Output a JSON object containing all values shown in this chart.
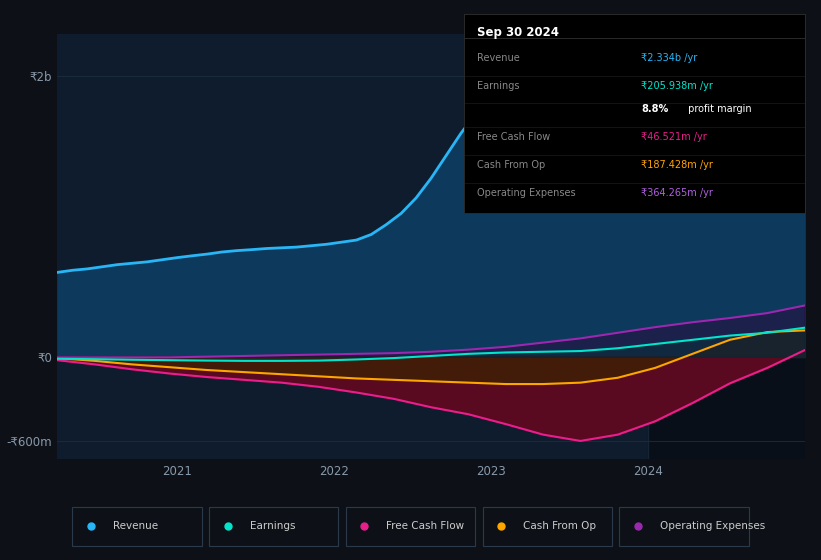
{
  "bg_color": "#0d1117",
  "plot_bg_color": "#0e1c2e",
  "grid_color": "#1e2d3d",
  "title_box": {
    "date": "Sep 30 2024",
    "rows": [
      {
        "label": "Revenue",
        "value": "₹2.334b /yr",
        "value_color": "#00bfff"
      },
      {
        "label": "Earnings",
        "value": "₹205.938m /yr",
        "value_color": "#00e5cc"
      },
      {
        "label": "",
        "value2a": "8.8%",
        "value2b": " profit margin",
        "value_color": "#ffffff"
      },
      {
        "label": "Free Cash Flow",
        "value": "₹46.521m /yr",
        "value_color": "#ff69b4"
      },
      {
        "label": "Cash From Op",
        "value": "₹187.428m /yr",
        "value_color": "#ffa500"
      },
      {
        "label": "Operating Expenses",
        "value": "₹364.265m /yr",
        "value_color": "#b060e0"
      }
    ]
  },
  "ytick_labels": [
    "₹2b",
    "₹0",
    "-₹600m"
  ],
  "ytick_values": [
    2000,
    0,
    -600
  ],
  "xtick_labels": [
    "2021",
    "2022",
    "2023",
    "2024"
  ],
  "ylim": [
    -730,
    2300
  ],
  "series": {
    "revenue": {
      "color": "#29b6f6",
      "fill_color": "#0d3a5c",
      "x": [
        0,
        2,
        4,
        6,
        8,
        10,
        12,
        14,
        16,
        18,
        20,
        22,
        24,
        26,
        28,
        30,
        32,
        34,
        36,
        38,
        40,
        42,
        44,
        46,
        48,
        50,
        52,
        54,
        56,
        58,
        60,
        62,
        64,
        66,
        68,
        70,
        72,
        74,
        76,
        78,
        80,
        82,
        84,
        86,
        88,
        90,
        92,
        94,
        96,
        98,
        100
      ],
      "y": [
        600,
        615,
        625,
        640,
        655,
        665,
        675,
        690,
        705,
        718,
        730,
        745,
        755,
        762,
        770,
        775,
        780,
        790,
        800,
        815,
        830,
        870,
        940,
        1020,
        1130,
        1270,
        1430,
        1590,
        1730,
        1820,
        1870,
        1890,
        1895,
        1900,
        1885,
        1890,
        1895,
        1900,
        1910,
        1920,
        1935,
        1950,
        1960,
        1975,
        1990,
        2050,
        2120,
        2200,
        2270,
        2310,
        2334
      ]
    },
    "earnings": {
      "color": "#00e5cc",
      "fill_color": "#003333",
      "x": [
        0,
        5,
        10,
        15,
        20,
        25,
        30,
        35,
        40,
        45,
        50,
        55,
        60,
        65,
        70,
        75,
        80,
        85,
        90,
        95,
        100
      ],
      "y": [
        -15,
        -18,
        -22,
        -25,
        -28,
        -30,
        -30,
        -28,
        -20,
        -10,
        5,
        20,
        30,
        35,
        40,
        60,
        90,
        120,
        150,
        170,
        206
      ]
    },
    "free_cash_flow": {
      "color": "#e91e8c",
      "fill_color": "#5a0a20",
      "x": [
        0,
        5,
        10,
        15,
        20,
        25,
        30,
        35,
        40,
        45,
        50,
        55,
        60,
        65,
        70,
        75,
        80,
        85,
        90,
        95,
        100
      ],
      "y": [
        -25,
        -55,
        -90,
        -120,
        -145,
        -165,
        -185,
        -215,
        -255,
        -300,
        -360,
        -410,
        -480,
        -555,
        -600,
        -555,
        -460,
        -330,
        -190,
        -80,
        46
      ]
    },
    "cash_from_op": {
      "color": "#ffa500",
      "fill_color": "#3a2500",
      "x": [
        0,
        5,
        10,
        15,
        20,
        25,
        30,
        35,
        40,
        45,
        50,
        55,
        60,
        65,
        70,
        75,
        80,
        85,
        90,
        95,
        100
      ],
      "y": [
        -10,
        -30,
        -55,
        -75,
        -95,
        -110,
        -125,
        -140,
        -155,
        -165,
        -175,
        -185,
        -195,
        -195,
        -185,
        -150,
        -80,
        20,
        120,
        175,
        187
      ]
    },
    "operating_expenses": {
      "color": "#9c27b0",
      "fill_color": "#2a0a3a",
      "x": [
        0,
        5,
        10,
        15,
        20,
        25,
        30,
        35,
        40,
        45,
        50,
        55,
        60,
        65,
        70,
        75,
        80,
        85,
        90,
        95,
        100
      ],
      "y": [
        -5,
        -5,
        -5,
        -5,
        0,
        5,
        10,
        15,
        20,
        25,
        35,
        50,
        70,
        100,
        130,
        170,
        210,
        245,
        275,
        310,
        364
      ]
    }
  },
  "legend_items": [
    {
      "label": "Revenue",
      "color": "#29b6f6"
    },
    {
      "label": "Earnings",
      "color": "#00e5cc"
    },
    {
      "label": "Free Cash Flow",
      "color": "#e91e8c"
    },
    {
      "label": "Cash From Op",
      "color": "#ffa500"
    },
    {
      "label": "Operating Expenses",
      "color": "#9c27b0"
    }
  ],
  "zero_line_color": "#ffffff",
  "vertical_line_x": 79,
  "right_shade_color": "#080f18"
}
